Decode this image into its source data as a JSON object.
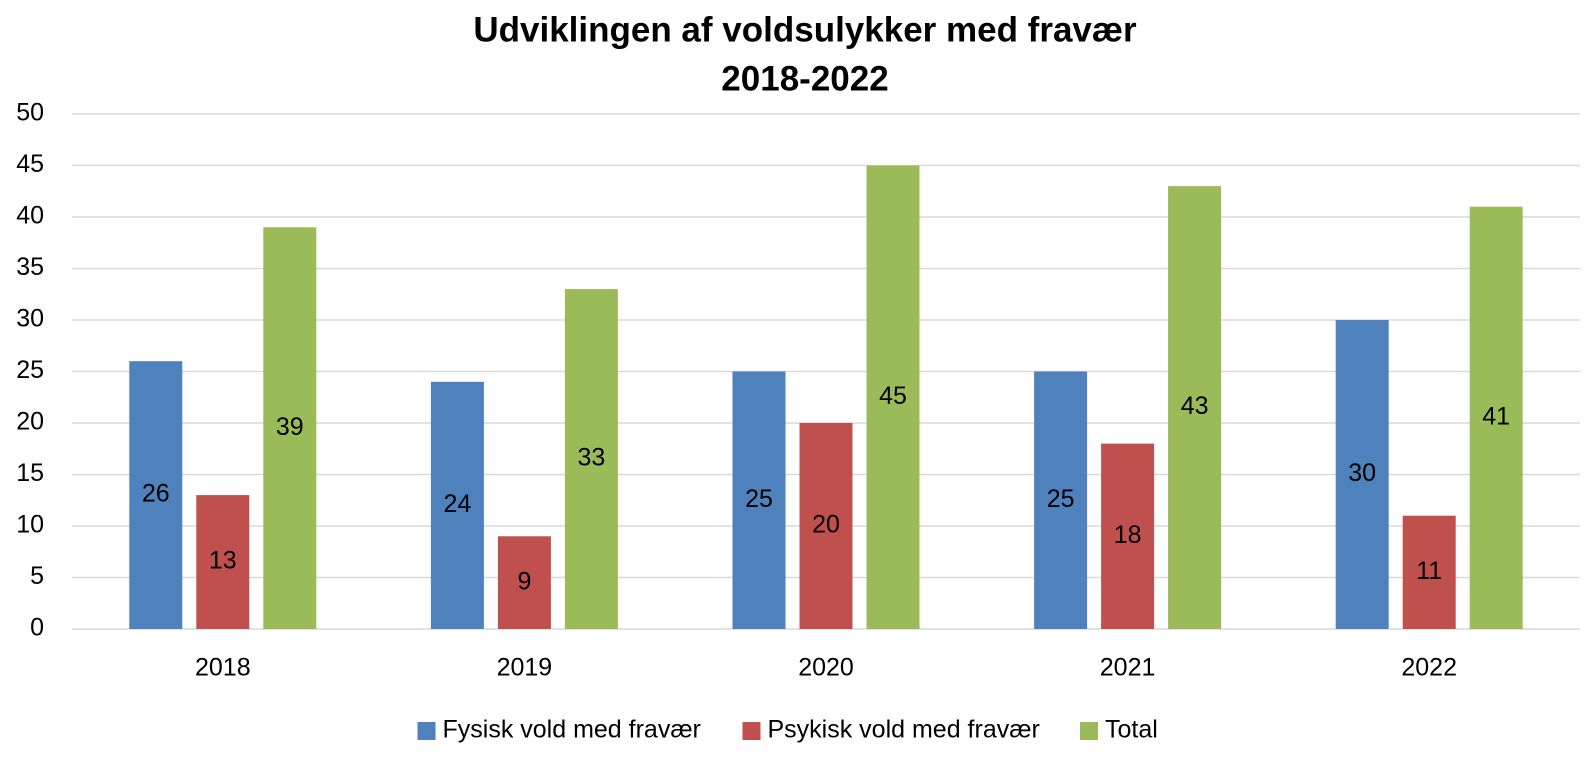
{
  "chart_data": {
    "type": "bar",
    "title": "Udviklingen af voldsulykker med fravær",
    "subtitle": "2018-2022",
    "categories": [
      "2018",
      "2019",
      "2020",
      "2021",
      "2022"
    ],
    "series": [
      {
        "name": "Fysisk vold med fravær",
        "color": "#4f81bd",
        "values": [
          26,
          24,
          25,
          25,
          30
        ]
      },
      {
        "name": "Psykisk vold med fravær",
        "color": "#c0504d",
        "values": [
          13,
          9,
          20,
          18,
          11
        ]
      },
      {
        "name": "Total",
        "color": "#9bbb59",
        "values": [
          39,
          33,
          45,
          43,
          41
        ]
      }
    ],
    "ylim": [
      0,
      50
    ],
    "yticks": [
      0,
      5,
      10,
      15,
      20,
      25,
      30,
      35,
      40,
      45,
      50
    ],
    "grid": true,
    "legend": "bottom"
  }
}
